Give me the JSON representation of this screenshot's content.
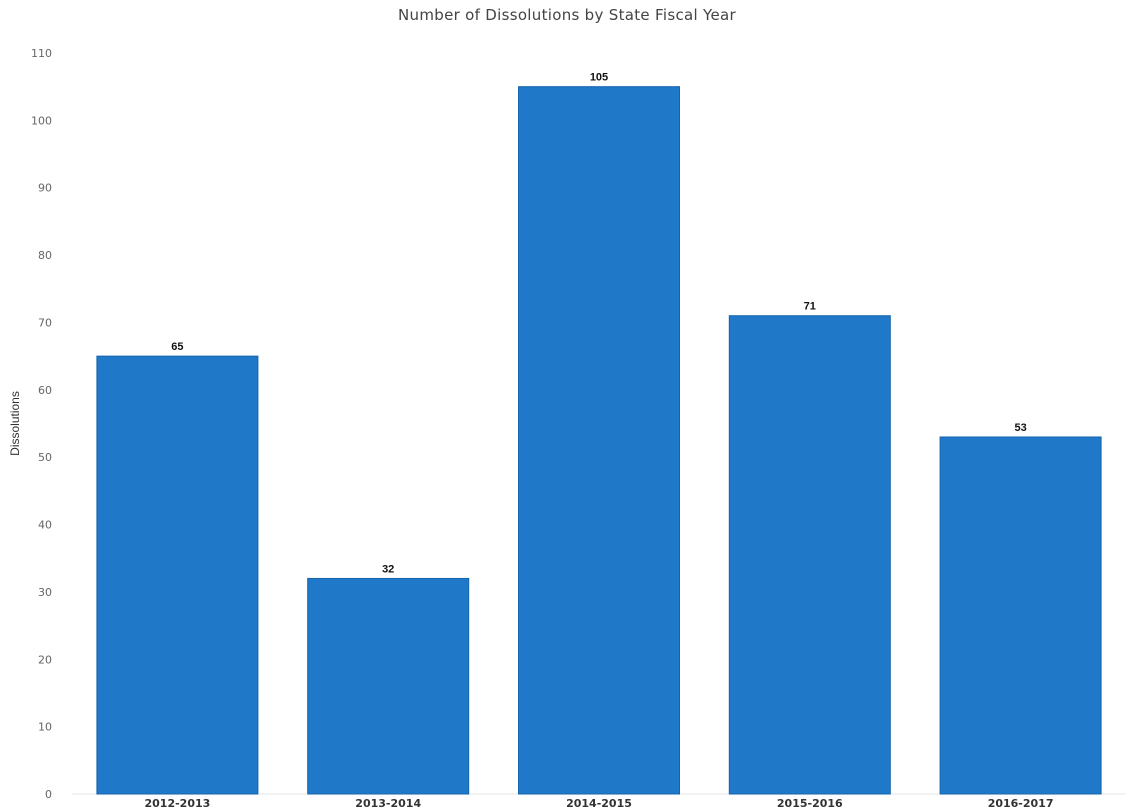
{
  "chart_data": {
    "type": "bar",
    "title": "Number of Dissolutions by State Fiscal Year",
    "xlabel": "",
    "ylabel": "Dissolutions",
    "categories": [
      "2012-2013",
      "2013-2014",
      "2014-2015",
      "2015-2016",
      "2016-2017"
    ],
    "values": [
      65,
      32,
      105,
      71,
      53
    ],
    "ylim": [
      0,
      110
    ],
    "yticks": [
      0,
      10,
      20,
      30,
      40,
      50,
      60,
      70,
      80,
      90,
      100,
      110
    ],
    "grid": false,
    "bar_color": "#1f78c8"
  }
}
